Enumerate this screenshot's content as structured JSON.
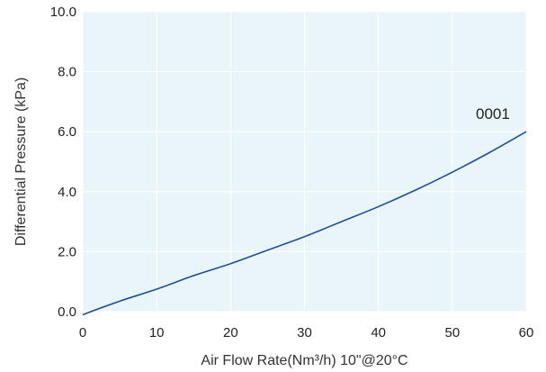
{
  "chart_data": {
    "type": "line",
    "xlabel": "Air Flow Rate(Nm³/h) 10\"@20°C",
    "ylabel": "Differential Pressure (kPa)",
    "xlim": [
      0,
      60
    ],
    "ylim": [
      0,
      10
    ],
    "x_ticks": [
      "0",
      "10",
      "20",
      "30",
      "40",
      "50",
      "60"
    ],
    "y_ticks": [
      "0.0",
      "2.0",
      "4.0",
      "6.0",
      "8.0",
      "10.0"
    ],
    "grid": true,
    "series": [
      {
        "name": "0001",
        "color": "#1f4e96",
        "x": [
          0,
          5,
          10,
          15,
          20,
          25,
          30,
          35,
          40,
          45,
          50,
          55,
          60
        ],
        "y": [
          -0.1,
          0.35,
          0.75,
          1.2,
          1.6,
          2.05,
          2.5,
          3.0,
          3.5,
          4.05,
          4.65,
          5.3,
          6.0
        ]
      }
    ],
    "colors": {
      "plot_background": "#eaf5f9",
      "grid": "#ffffff",
      "line": "#1f4e96",
      "label": "#1f4e96"
    }
  }
}
